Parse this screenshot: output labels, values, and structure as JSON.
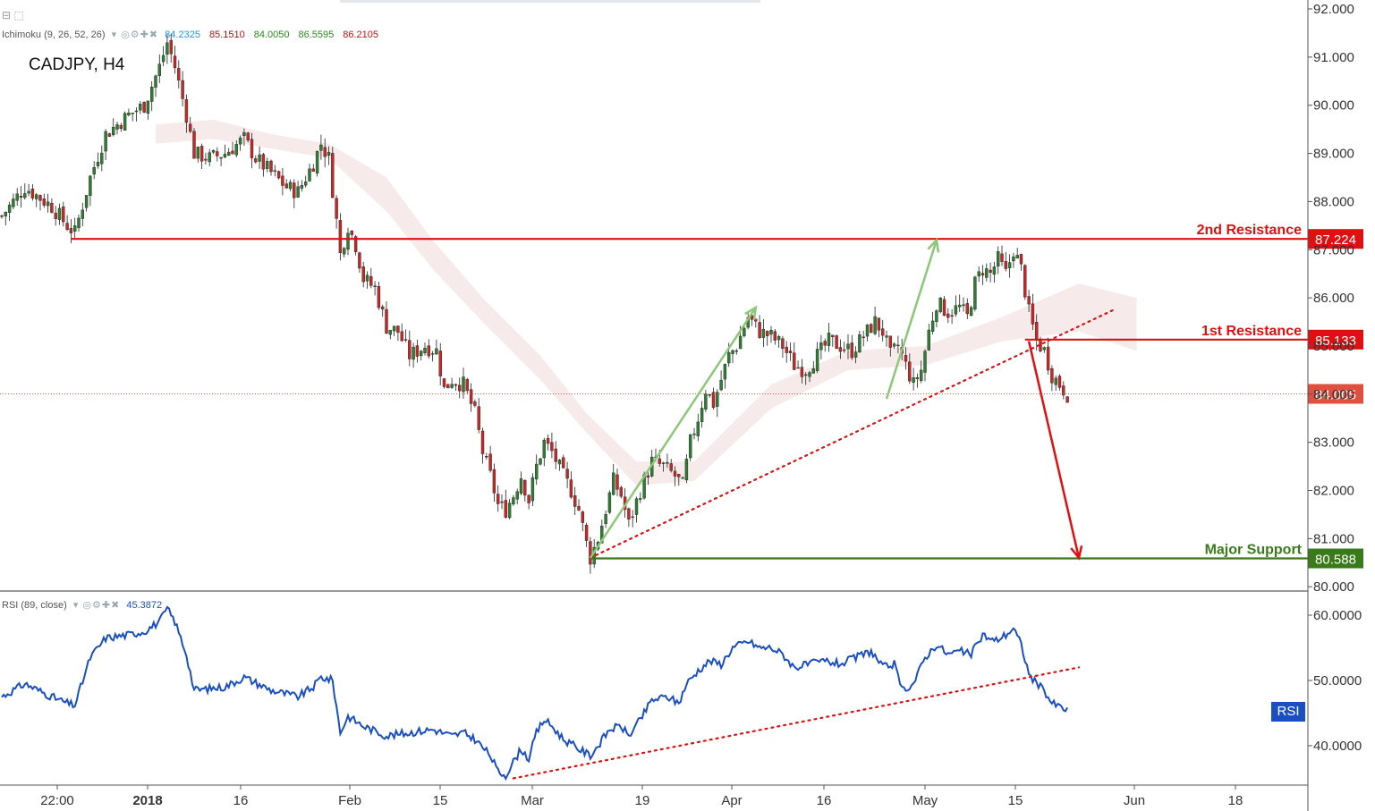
{
  "symbol": "CADJPY, H4",
  "main_indicator": {
    "label": "Ichimoku (9, 26, 52, 26)",
    "values": [
      {
        "text": "84.2325",
        "color": "#2196f3"
      },
      {
        "text": "85.1510",
        "color": "#a01818"
      },
      {
        "text": "84.0050",
        "color": "#2e8b20"
      },
      {
        "text": "86.5595",
        "color": "#2e8b20"
      },
      {
        "text": "86.2105",
        "color": "#d01010"
      }
    ]
  },
  "rsi_indicator": {
    "label": "RSI (89, close)",
    "value_text": "45.3872",
    "value_color": "#1a4fc4",
    "tag": "RSI"
  },
  "colors": {
    "resistance": "#e01010",
    "support": "#3a7a1a",
    "rsi_line": "#1a4fc4",
    "trend_dotted": "#e01010",
    "arrow_up": "#8dc87a",
    "arrow_down": "#e01010",
    "candle_up": "#2e7d32",
    "candle_down": "#c62828",
    "cloud": "#f6e6e6",
    "current": "#e05040"
  },
  "chart_data": [
    {
      "type": "candlestick",
      "title": "CADJPY, H4",
      "x_ticks": [
        "22:00",
        "2018",
        "16",
        "Feb",
        "15",
        "Mar",
        "19",
        "Apr",
        "16",
        "May",
        "15",
        "Jun",
        "18"
      ],
      "ylim": [
        79.85,
        92.25
      ],
      "y_ticks": [
        "92.000",
        "91.000",
        "90.000",
        "89.000",
        "88.000",
        "87.000",
        "86.000",
        "85.000",
        "84.000",
        "83.000",
        "82.000",
        "81.000",
        "80.000"
      ],
      "price_path": [
        {
          "t": 0,
          "p": 87.7
        },
        {
          "t": 6,
          "p": 88.3
        },
        {
          "t": 13,
          "p": 87.9
        },
        {
          "t": 17,
          "p": 87.5
        },
        {
          "t": 19,
          "p": 87.35
        },
        {
          "t": 23,
          "p": 88.5
        },
        {
          "t": 27,
          "p": 89.4
        },
        {
          "t": 33,
          "p": 89.8
        },
        {
          "t": 37,
          "p": 90.0
        },
        {
          "t": 41,
          "p": 90.8
        },
        {
          "t": 43,
          "p": 91.3
        },
        {
          "t": 45,
          "p": 90.8
        },
        {
          "t": 48,
          "p": 89.8
        },
        {
          "t": 50,
          "p": 89.0
        },
        {
          "t": 54,
          "p": 88.9
        },
        {
          "t": 58,
          "p": 89.0
        },
        {
          "t": 63,
          "p": 89.3
        },
        {
          "t": 66,
          "p": 88.9
        },
        {
          "t": 70,
          "p": 88.6
        },
        {
          "t": 74,
          "p": 88.3
        },
        {
          "t": 77,
          "p": 88.2
        },
        {
          "t": 81,
          "p": 88.8
        },
        {
          "t": 83,
          "p": 89.2
        },
        {
          "t": 85,
          "p": 88.9
        },
        {
          "t": 87,
          "p": 87.6
        },
        {
          "t": 88,
          "p": 86.9
        },
        {
          "t": 90,
          "p": 87.5
        },
        {
          "t": 92,
          "p": 87.1
        },
        {
          "t": 94,
          "p": 86.4
        },
        {
          "t": 97,
          "p": 86.2
        },
        {
          "t": 100,
          "p": 85.4
        },
        {
          "t": 103,
          "p": 85.3
        },
        {
          "t": 106,
          "p": 84.8
        },
        {
          "t": 110,
          "p": 85.0
        },
        {
          "t": 113,
          "p": 84.9
        },
        {
          "t": 115,
          "p": 84.1
        },
        {
          "t": 117,
          "p": 84.3
        },
        {
          "t": 120,
          "p": 84.2
        },
        {
          "t": 123,
          "p": 83.6
        },
        {
          "t": 125,
          "p": 82.8
        },
        {
          "t": 127,
          "p": 82.3
        },
        {
          "t": 129,
          "p": 81.7
        },
        {
          "t": 131,
          "p": 81.6
        },
        {
          "t": 133,
          "p": 81.9
        },
        {
          "t": 135,
          "p": 82.3
        },
        {
          "t": 137,
          "p": 81.8
        },
        {
          "t": 139,
          "p": 82.5
        },
        {
          "t": 141,
          "p": 83.0
        },
        {
          "t": 143,
          "p": 82.8
        },
        {
          "t": 146,
          "p": 82.3
        },
        {
          "t": 148,
          "p": 82.0
        },
        {
          "t": 150,
          "p": 81.6
        },
        {
          "t": 152,
          "p": 80.9
        },
        {
          "t": 153,
          "p": 80.6
        },
        {
          "t": 155,
          "p": 81.0
        },
        {
          "t": 157,
          "p": 81.6
        },
        {
          "t": 159,
          "p": 82.2
        },
        {
          "t": 161,
          "p": 81.9
        },
        {
          "t": 163,
          "p": 81.3
        },
        {
          "t": 166,
          "p": 82.0
        },
        {
          "t": 169,
          "p": 82.6
        },
        {
          "t": 172,
          "p": 82.5
        },
        {
          "t": 175,
          "p": 82.3
        },
        {
          "t": 177,
          "p": 82.1
        },
        {
          "t": 179,
          "p": 83.0
        },
        {
          "t": 181,
          "p": 83.5
        },
        {
          "t": 183,
          "p": 84.1
        },
        {
          "t": 185,
          "p": 83.8
        },
        {
          "t": 187,
          "p": 84.3
        },
        {
          "t": 189,
          "p": 84.8
        },
        {
          "t": 191,
          "p": 85.0
        },
        {
          "t": 194,
          "p": 85.6
        },
        {
          "t": 197,
          "p": 85.3
        },
        {
          "t": 200,
          "p": 85.2
        },
        {
          "t": 203,
          "p": 85.0
        },
        {
          "t": 206,
          "p": 84.6
        },
        {
          "t": 209,
          "p": 84.5
        },
        {
          "t": 212,
          "p": 84.8
        },
        {
          "t": 215,
          "p": 85.1
        },
        {
          "t": 218,
          "p": 85.0
        },
        {
          "t": 221,
          "p": 84.9
        },
        {
          "t": 224,
          "p": 85.2
        },
        {
          "t": 227,
          "p": 85.5
        },
        {
          "t": 229,
          "p": 85.3
        },
        {
          "t": 231,
          "p": 84.8
        },
        {
          "t": 233,
          "p": 85.0
        },
        {
          "t": 235,
          "p": 84.6
        },
        {
          "t": 237,
          "p": 84.2
        },
        {
          "t": 239,
          "p": 84.5
        },
        {
          "t": 241,
          "p": 85.3
        },
        {
          "t": 243,
          "p": 85.9
        },
        {
          "t": 246,
          "p": 85.7
        },
        {
          "t": 249,
          "p": 85.8
        },
        {
          "t": 251,
          "p": 85.6
        },
        {
          "t": 253,
          "p": 86.3
        },
        {
          "t": 255,
          "p": 86.6
        },
        {
          "t": 257,
          "p": 86.5
        },
        {
          "t": 259,
          "p": 86.8
        },
        {
          "t": 261,
          "p": 86.5
        },
        {
          "t": 263,
          "p": 87.0
        },
        {
          "t": 265,
          "p": 86.6
        },
        {
          "t": 267,
          "p": 85.7
        },
        {
          "t": 269,
          "p": 85.1
        },
        {
          "t": 271,
          "p": 84.9
        },
        {
          "t": 273,
          "p": 84.4
        },
        {
          "t": 275,
          "p": 84.2
        },
        {
          "t": 277,
          "p": 84.0
        }
      ],
      "ichimoku_cloud": [
        {
          "t": 40,
          "top": 89.6,
          "bot": 89.2
        },
        {
          "t": 55,
          "top": 89.7,
          "bot": 89.3
        },
        {
          "t": 70,
          "top": 89.4,
          "bot": 89.1
        },
        {
          "t": 85,
          "top": 89.2,
          "bot": 88.9
        },
        {
          "t": 100,
          "top": 88.5,
          "bot": 87.8
        },
        {
          "t": 112,
          "top": 87.2,
          "bot": 86.6
        },
        {
          "t": 125,
          "top": 86.0,
          "bot": 85.5
        },
        {
          "t": 140,
          "top": 84.8,
          "bot": 84.3
        },
        {
          "t": 152,
          "top": 83.6,
          "bot": 83.2
        },
        {
          "t": 165,
          "top": 82.6,
          "bot": 82.1
        },
        {
          "t": 180,
          "top": 82.6,
          "bot": 82.2
        },
        {
          "t": 200,
          "top": 84.2,
          "bot": 83.7
        },
        {
          "t": 220,
          "top": 84.9,
          "bot": 84.5
        },
        {
          "t": 240,
          "top": 85.0,
          "bot": 84.6
        },
        {
          "t": 260,
          "top": 85.6,
          "bot": 85.1
        },
        {
          "t": 280,
          "top": 86.3,
          "bot": 85.3
        },
        {
          "t": 295,
          "top": 86.0,
          "bot": 84.9
        }
      ],
      "levels": [
        {
          "name": "2nd Resistance",
          "value": 87.224,
          "value_label": "87.224",
          "kind": "resistance"
        },
        {
          "name": "1st Resistance",
          "value": 85.133,
          "value_label": "85.133",
          "kind": "resistance"
        },
        {
          "name": "Major Support",
          "value": 80.588,
          "value_label": "80.588",
          "kind": "support"
        }
      ],
      "current_price": {
        "value": 84.005,
        "label": "84.005"
      },
      "trendlines": [
        {
          "style": "dotted",
          "from": {
            "t": 153,
            "p": 80.6
          },
          "to": {
            "t": 289,
            "p": 85.75
          }
        }
      ],
      "arrows": [
        {
          "kind": "up",
          "from": {
            "t": 153,
            "p": 80.6
          },
          "to": {
            "t": 196,
            "p": 85.8
          }
        },
        {
          "kind": "up",
          "from": {
            "t": 230,
            "p": 83.9
          },
          "to": {
            "t": 243,
            "p": 87.2
          }
        },
        {
          "kind": "down",
          "from": {
            "t": 267,
            "p": 85.1
          },
          "to": {
            "t": 280,
            "p": 80.6
          }
        }
      ]
    },
    {
      "type": "line",
      "title": "RSI (89, close)",
      "ylim": [
        34.5,
        62.8
      ],
      "y_ticks": [
        "60.0000",
        "50.0000",
        "40.0000"
      ],
      "rsi_path": [
        {
          "t": 0,
          "v": 47.5
        },
        {
          "t": 6,
          "v": 49.5
        },
        {
          "t": 13,
          "v": 47.5
        },
        {
          "t": 17,
          "v": 46.5
        },
        {
          "t": 19,
          "v": 46.2
        },
        {
          "t": 23,
          "v": 53.5
        },
        {
          "t": 27,
          "v": 56.5
        },
        {
          "t": 33,
          "v": 57.0
        },
        {
          "t": 37,
          "v": 57.5
        },
        {
          "t": 41,
          "v": 59.0
        },
        {
          "t": 43,
          "v": 61.0
        },
        {
          "t": 45,
          "v": 59.0
        },
        {
          "t": 48,
          "v": 54.0
        },
        {
          "t": 50,
          "v": 48.5
        },
        {
          "t": 58,
          "v": 49.0
        },
        {
          "t": 63,
          "v": 50.5
        },
        {
          "t": 70,
          "v": 48.5
        },
        {
          "t": 77,
          "v": 47.5
        },
        {
          "t": 81,
          "v": 49.0
        },
        {
          "t": 83,
          "v": 50.5
        },
        {
          "t": 86,
          "v": 50.0
        },
        {
          "t": 88,
          "v": 42.0
        },
        {
          "t": 90,
          "v": 44.5
        },
        {
          "t": 94,
          "v": 43.0
        },
        {
          "t": 100,
          "v": 41.5
        },
        {
          "t": 106,
          "v": 42.0
        },
        {
          "t": 112,
          "v": 42.5
        },
        {
          "t": 117,
          "v": 41.5
        },
        {
          "t": 120,
          "v": 42.0
        },
        {
          "t": 123,
          "v": 41.0
        },
        {
          "t": 127,
          "v": 38.5
        },
        {
          "t": 129,
          "v": 36.0
        },
        {
          "t": 131,
          "v": 35.5
        },
        {
          "t": 133,
          "v": 37.5
        },
        {
          "t": 135,
          "v": 39.5
        },
        {
          "t": 137,
          "v": 38.0
        },
        {
          "t": 139,
          "v": 42.0
        },
        {
          "t": 141,
          "v": 44.0
        },
        {
          "t": 143,
          "v": 43.0
        },
        {
          "t": 146,
          "v": 41.0
        },
        {
          "t": 150,
          "v": 39.5
        },
        {
          "t": 153,
          "v": 38.5
        },
        {
          "t": 155,
          "v": 40.0
        },
        {
          "t": 158,
          "v": 42.5
        },
        {
          "t": 161,
          "v": 43.0
        },
        {
          "t": 163,
          "v": 41.5
        },
        {
          "t": 166,
          "v": 44.0
        },
        {
          "t": 169,
          "v": 47.0
        },
        {
          "t": 173,
          "v": 47.5
        },
        {
          "t": 176,
          "v": 46.5
        },
        {
          "t": 178,
          "v": 49.5
        },
        {
          "t": 181,
          "v": 51.5
        },
        {
          "t": 184,
          "v": 53.0
        },
        {
          "t": 187,
          "v": 52.5
        },
        {
          "t": 190,
          "v": 55.0
        },
        {
          "t": 194,
          "v": 56.0
        },
        {
          "t": 197,
          "v": 55.0
        },
        {
          "t": 200,
          "v": 55.0
        },
        {
          "t": 203,
          "v": 54.0
        },
        {
          "t": 206,
          "v": 52.0
        },
        {
          "t": 210,
          "v": 52.5
        },
        {
          "t": 214,
          "v": 53.0
        },
        {
          "t": 218,
          "v": 52.5
        },
        {
          "t": 222,
          "v": 53.5
        },
        {
          "t": 226,
          "v": 54.5
        },
        {
          "t": 229,
          "v": 52.0
        },
        {
          "t": 232,
          "v": 52.5
        },
        {
          "t": 234,
          "v": 48.5
        },
        {
          "t": 237,
          "v": 49.5
        },
        {
          "t": 240,
          "v": 53.5
        },
        {
          "t": 243,
          "v": 55.5
        },
        {
          "t": 246,
          "v": 54.0
        },
        {
          "t": 249,
          "v": 54.5
        },
        {
          "t": 252,
          "v": 54.0
        },
        {
          "t": 255,
          "v": 57.0
        },
        {
          "t": 258,
          "v": 56.0
        },
        {
          "t": 261,
          "v": 57.0
        },
        {
          "t": 263,
          "v": 58.0
        },
        {
          "t": 265,
          "v": 55.5
        },
        {
          "t": 267,
          "v": 51.0
        },
        {
          "t": 269,
          "v": 49.5
        },
        {
          "t": 271,
          "v": 48.5
        },
        {
          "t": 273,
          "v": 46.5
        },
        {
          "t": 275,
          "v": 46.0
        },
        {
          "t": 277,
          "v": 45.4
        }
      ],
      "trendlines": [
        {
          "style": "dotted",
          "from": {
            "t": 133,
            "v": 35.0
          },
          "to": {
            "t": 280,
            "v": 52.0
          }
        }
      ]
    }
  ]
}
